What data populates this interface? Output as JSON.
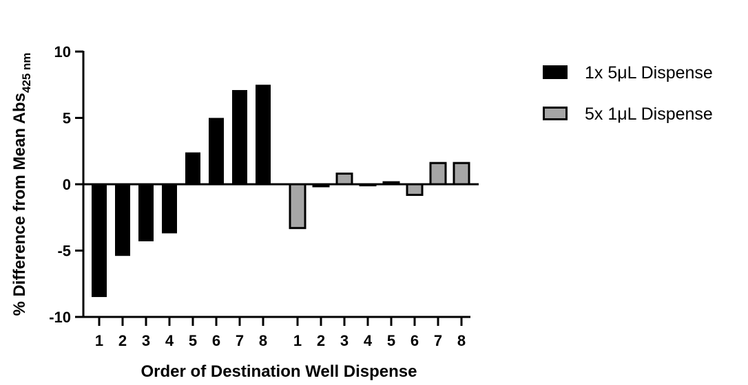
{
  "chart_data": {
    "type": "bar",
    "ylabel_main": "% Difference from Mean Abs",
    "ylabel_sub": "425 nm",
    "xlabel": "Order of Destination Well Dispense",
    "ylim": [
      -10,
      10
    ],
    "yticks": [
      "10",
      "5",
      "0",
      "-5",
      "-10"
    ],
    "ytick_values": [
      10,
      5,
      0,
      -5,
      -10
    ],
    "legend_position": "right",
    "series": [
      {
        "name": "1x 5μL Dispense",
        "color": "#000000",
        "categories": [
          "1",
          "2",
          "3",
          "4",
          "5",
          "6",
          "7",
          "8"
        ],
        "values": [
          -8.5,
          -5.4,
          -4.3,
          -3.7,
          2.4,
          5.0,
          7.1,
          7.5
        ]
      },
      {
        "name": "5x 1μL Dispense",
        "color": "#a6a6a6",
        "categories": [
          "1",
          "2",
          "3",
          "4",
          "5",
          "6",
          "7",
          "8"
        ],
        "values": [
          -3.3,
          -0.15,
          0.8,
          0.0,
          0.15,
          -0.8,
          1.6,
          1.6
        ]
      }
    ]
  }
}
